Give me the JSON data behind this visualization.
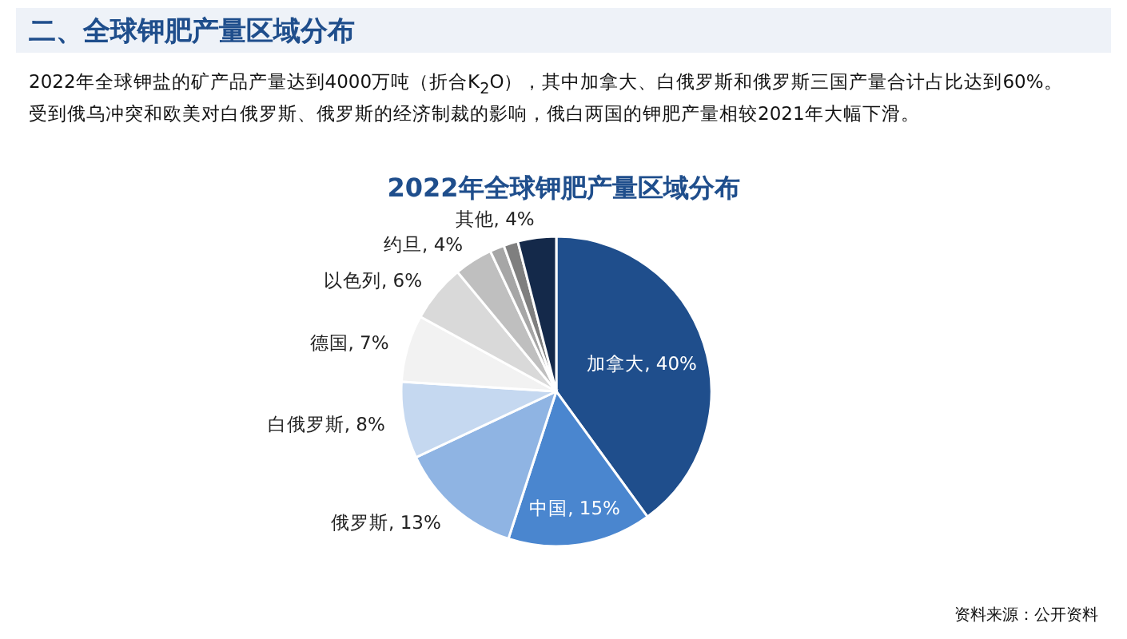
{
  "chart_data": {
    "type": "pie",
    "title": "2022年全球钾肥产量区域分布",
    "subtitle": "二、全球钾肥产量区域分布",
    "categories": [
      "加拿大",
      "中国",
      "俄罗斯",
      "白俄罗斯",
      "德国",
      "以色列",
      "约旦",
      null,
      null,
      "其他"
    ],
    "values": [
      40,
      15,
      13,
      8,
      7,
      6,
      4,
      1.5,
      1.5,
      4
    ],
    "colors": [
      "#1f4e8c",
      "#4a86cf",
      "#8fb4e3",
      "#c5d8f0",
      "#f2f2f2",
      "#d9d9d9",
      "#bfbfbf",
      "#a6a6a6",
      "#7f7f7f",
      "#14294a"
    ],
    "value_labels": [
      ", 40%",
      ", 15%",
      ", 13%",
      ", 8%",
      ", 7%",
      ", 6%",
      ", 4%",
      null,
      null,
      ", 4%"
    ],
    "legend": false,
    "annotations": [
      "2022年全球钾盐的矿产品产量达到4000万吨（折合K$_{2}$O），其中加拿大、白俄罗斯和俄罗斯三国产量合计占比达到60%。",
      "受到俄乌冲突和欧美对白俄罗斯、俄罗斯的经济制裁的影响，俄白两国的钾肥产量相较2021年大幅下滑。",
      "资料来源：公开资料"
    ]
  }
}
